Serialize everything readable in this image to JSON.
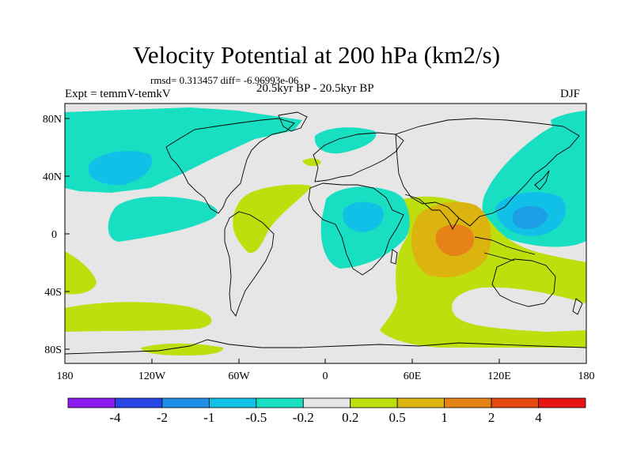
{
  "title": "Velocity Potential at 200 hPa (km2/s)",
  "stats": "rmsd= 0.313457 diff= -6.96993e-06",
  "experiment": "Expt = temmV-temkV",
  "period": "20.5kyr BP - 20.5kyr BP",
  "season": "DJF",
  "axes": {
    "lat_labels": [
      "80N",
      "40N",
      "0",
      "40S",
      "80S"
    ],
    "lon_labels": [
      "180",
      "120W",
      "60W",
      "0",
      "60E",
      "120E",
      "180"
    ]
  },
  "colorbar": {
    "labels": [
      "-4",
      "-2",
      "-1",
      "-0.5",
      "-0.2",
      "0.2",
      "0.5",
      "1",
      "2",
      "4"
    ],
    "colors": [
      "#8c1cf0",
      "#2845e6",
      "#1f8fe8",
      "#10c0e6",
      "#18dec2",
      "#e6e6e6",
      "#bede0e",
      "#dcb410",
      "#e68216",
      "#e64a10",
      "#e61414"
    ]
  },
  "colors": {
    "neutral": "#e6e6e6",
    "weak_negative": "#18dec2",
    "moderate_negative": "#10c0e6",
    "weak_positive": "#bede0e",
    "moderate_positive": "#dcb410",
    "strong_positive": "#e68216",
    "coast": "#000000"
  }
}
